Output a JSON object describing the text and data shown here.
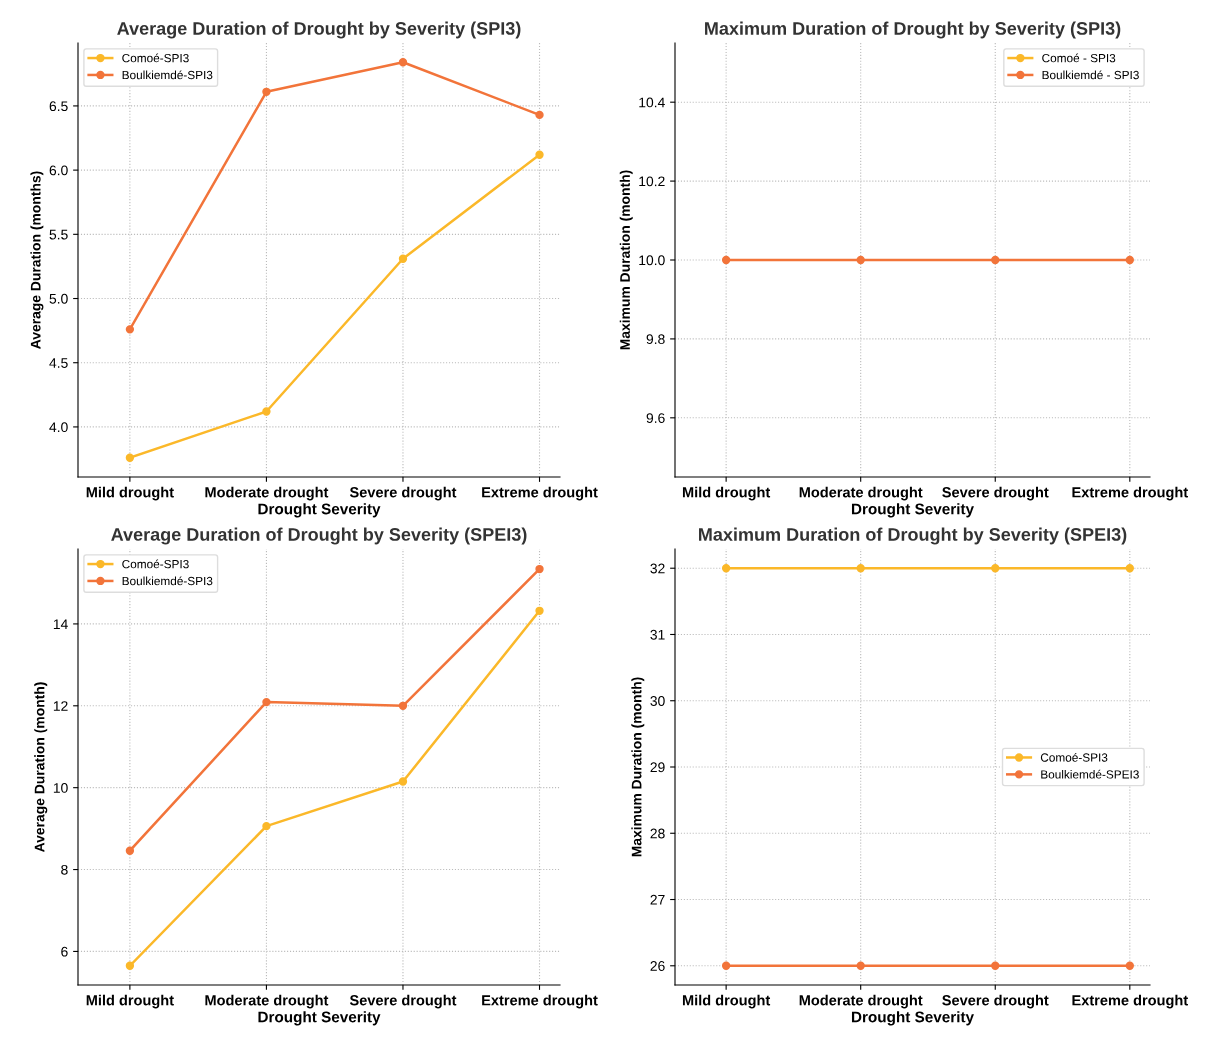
{
  "chart_data": [
    {
      "type": "line",
      "title": "Average Duration of Drought by Severity (SPI3)",
      "xlabel": "Drought Severity",
      "ylabel": "Average Duration (months)",
      "categories": [
        "Mild drought",
        "Moderate drought",
        "Severe drought",
        "Extreme drought"
      ],
      "series": [
        {
          "name": "Comoé-SPI3",
          "color": "#fbb829",
          "values": [
            3.76,
            4.12,
            5.31,
            6.12
          ]
        },
        {
          "name": "Boulkiemdé-SPI3",
          "color": "#f2743a",
          "values": [
            4.76,
            6.61,
            6.84,
            6.43
          ]
        }
      ],
      "ylim": [
        3.61,
        6.99
      ],
      "yticks": [
        {
          "value": 4.0,
          "label": "4.0"
        },
        4.5,
        {
          "value": 5.0,
          "label": "5.0"
        },
        5.5,
        {
          "value": 6.0,
          "label": "6.0"
        },
        6.5
      ],
      "grid": true,
      "legend": "top left",
      "marker": "circle",
      "line_style": "solid"
    },
    {
      "type": "line",
      "title": "Maximum Duration of Drought by Severity (SPI3)",
      "xlabel": "Drought Severity",
      "ylabel": "Maximum Duration (month)",
      "categories": [
        "Mild drought",
        "Moderate drought",
        "Severe drought",
        "Extreme drought"
      ],
      "series": [
        {
          "name": "Comoé - SPI3",
          "color": "#fbb829",
          "values": [
            null,
            null,
            null,
            null
          ]
        },
        {
          "name": "Boulkiemdé - SPI3",
          "color": "#f2743a",
          "values": [
            10.0,
            10.0,
            10.0,
            10.0
          ]
        }
      ],
      "ylim": [
        9.45,
        10.55
      ],
      "yticks": [
        9.6,
        9.8,
        {
          "value": 10.0,
          "label": "10.0"
        },
        10.2,
        10.4
      ],
      "grid": true,
      "legend": "top right",
      "marker": "circle",
      "line_style": "solid"
    },
    {
      "type": "line",
      "title": "Average Duration of Drought by Severity (SPEI3)",
      "xlabel": "Drought Severity",
      "ylabel": "Average Duration (month)",
      "categories": [
        "Mild drought",
        "Moderate drought",
        "Severe drought",
        "Extreme drought"
      ],
      "series": [
        {
          "name": "Comoé-SPI3",
          "color": "#fbb829",
          "values": [
            5.65,
            9.06,
            10.15,
            14.32
          ]
        },
        {
          "name": "Boulkiemdé-SPI3",
          "color": "#f2743a",
          "values": [
            8.46,
            12.09,
            12.0,
            15.34
          ]
        }
      ],
      "ylim": [
        5.18,
        15.83
      ],
      "yticks": [
        6,
        8,
        10,
        12,
        14
      ],
      "grid": true,
      "legend": "top left",
      "marker": "circle",
      "line_style": "solid"
    },
    {
      "type": "line",
      "title": "Maximum Duration of Drought by Severity (SPEI3)",
      "xlabel": "Drought Severity",
      "ylabel": "Maximum Duration (month)",
      "categories": [
        "Mild drought",
        "Moderate drought",
        "Severe drought",
        "Extreme drought"
      ],
      "series": [
        {
          "name": "Comoé-SPI3",
          "color": "#fbb829",
          "values": [
            32,
            32,
            32,
            32
          ]
        },
        {
          "name": "Boulkiemdé-SPEI3",
          "color": "#f2743a",
          "values": [
            26,
            26,
            26,
            26
          ]
        }
      ],
      "ylim": [
        25.71,
        32.29
      ],
      "yticks": [
        26,
        27,
        28,
        29,
        30,
        31,
        32
      ],
      "grid": true,
      "legend": "right",
      "marker": "circle",
      "line_style": "solid"
    }
  ]
}
